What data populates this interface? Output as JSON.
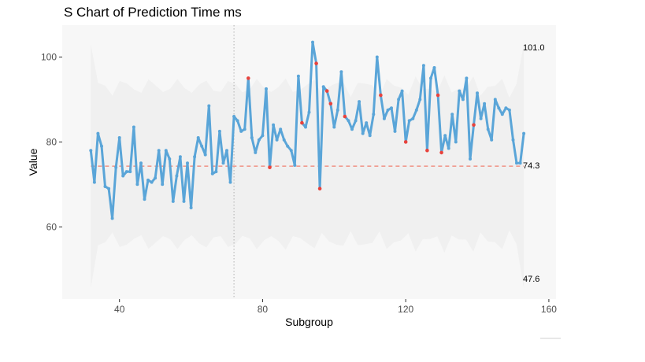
{
  "chart_data": {
    "type": "line",
    "title": "S Chart of Prediction Time ms",
    "xlabel": "Subgroup",
    "ylabel": "Value",
    "xlim": [
      24,
      162
    ],
    "ylim": [
      43,
      107.5
    ],
    "x_ticks": [
      40,
      80,
      120,
      160
    ],
    "y_ticks": [
      60,
      80,
      100
    ],
    "grid": false,
    "center_line": 74.3,
    "upper_limit": 101.0,
    "lower_limit": 47.6,
    "limit_labels": [
      "101.0",
      "74.3",
      "47.6"
    ],
    "phase_change_x": 72,
    "colors": {
      "line": "#5aa5d8",
      "outlier": "#e8423c",
      "center_line": "#f08070",
      "band": "#f0f0f0",
      "panel": "#f7f7f7",
      "phase_line": "#b0b0b0"
    },
    "series": [
      {
        "x": [
          32,
          33,
          34,
          35,
          36,
          37,
          38,
          39,
          40,
          41,
          42,
          43,
          44,
          45,
          46,
          47,
          48,
          49,
          50,
          51,
          52,
          53,
          54,
          55,
          56,
          57,
          58,
          59,
          60,
          61,
          62,
          63,
          64,
          65,
          66,
          67,
          68,
          69,
          70,
          71,
          72,
          73,
          74,
          75,
          76,
          77,
          78,
          79,
          80,
          81,
          82,
          83,
          84,
          85,
          86,
          87,
          88,
          89,
          90,
          91,
          92,
          93,
          94,
          95,
          96,
          97,
          98,
          99,
          100,
          101,
          102,
          103,
          104,
          105,
          106,
          107,
          108,
          109,
          110,
          111,
          112,
          113,
          114,
          115,
          116,
          117,
          118,
          119,
          120,
          121,
          122,
          123,
          124,
          125,
          126,
          127,
          128,
          129,
          130,
          131,
          132,
          133,
          134,
          135,
          136,
          137,
          138,
          139,
          140,
          141,
          142,
          143,
          144,
          145,
          146,
          147,
          148,
          149,
          150,
          151,
          152,
          153
        ],
        "values": [
          78.0,
          70.5,
          82.0,
          79.0,
          69.5,
          69.0,
          62.0,
          74.0,
          81.0,
          72.0,
          73.0,
          73.0,
          83.5,
          70.0,
          75.0,
          66.5,
          71.0,
          70.5,
          71.5,
          78.0,
          70.0,
          78.0,
          76.0,
          66.0,
          72.0,
          76.5,
          66.0,
          75.0,
          64.5,
          76.5,
          81.0,
          79.0,
          77.0,
          88.5,
          72.5,
          73.0,
          82.5,
          75.0,
          78.0,
          70.5,
          86.0,
          85.0,
          82.5,
          83.0,
          95.0,
          81.0,
          77.5,
          80.5,
          81.5,
          92.5,
          74.0,
          84.0,
          80.5,
          83.0,
          80.5,
          79.0,
          78.0,
          74.5,
          95.5,
          84.5,
          83.5,
          87.0,
          103.5,
          98.5,
          69.0,
          93.0,
          92.0,
          89.0,
          83.5,
          87.5,
          96.5,
          86.0,
          85.0,
          83.0,
          85.0,
          89.5,
          82.0,
          84.5,
          81.5,
          86.5,
          100.0,
          91.0,
          85.5,
          87.5,
          88.0,
          82.5,
          90.0,
          92.0,
          80.0,
          85.0,
          85.5,
          87.5,
          90.0,
          98.0,
          78.0,
          95.0,
          97.5,
          91.0,
          77.5,
          81.5,
          78.5,
          86.5,
          80.0,
          92.0,
          90.0,
          95.0,
          76.0,
          84.0,
          91.5,
          85.5,
          89.0,
          83.0,
          80.5,
          90.0,
          88.0,
          86.5,
          88.0,
          87.5,
          80.5,
          75.0,
          75.0,
          82.0
        ],
        "outliers_x": [
          76,
          82,
          91,
          95,
          96,
          98,
          99,
          103,
          113,
          120,
          126,
          129,
          130,
          139
        ]
      }
    ]
  }
}
